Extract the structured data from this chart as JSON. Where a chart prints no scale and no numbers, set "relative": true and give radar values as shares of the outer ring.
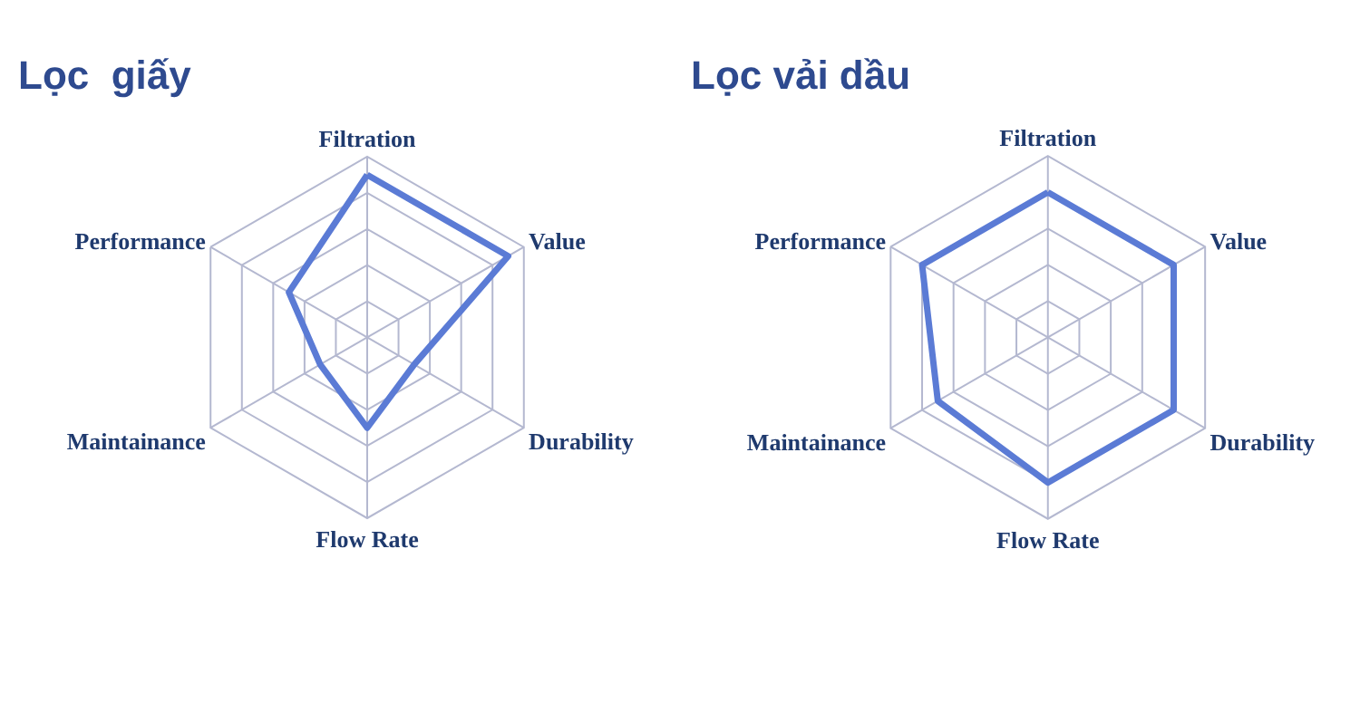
{
  "chart_data": [
    {
      "type": "radar",
      "title": "Lọc  giấy",
      "categories": [
        "Filtration",
        "Value",
        "Durability",
        "Flow Rate",
        "Maintainance",
        "Performance"
      ],
      "relative": true,
      "grid": true,
      "series": [
        {
          "color": "#5b7bd5",
          "values": [
            0.9,
            0.9,
            0.3,
            0.5,
            0.3,
            0.5
          ]
        }
      ]
    },
    {
      "type": "radar",
      "title": "Lọc vải dầu",
      "categories": [
        "Filtration",
        "Value",
        "Durability",
        "Flow Rate",
        "Maintainance",
        "Performance"
      ],
      "relative": true,
      "grid": true,
      "series": [
        {
          "color": "#5b7bd5",
          "values": [
            0.8,
            0.8,
            0.8,
            0.8,
            0.7,
            0.8
          ]
        }
      ]
    }
  ]
}
